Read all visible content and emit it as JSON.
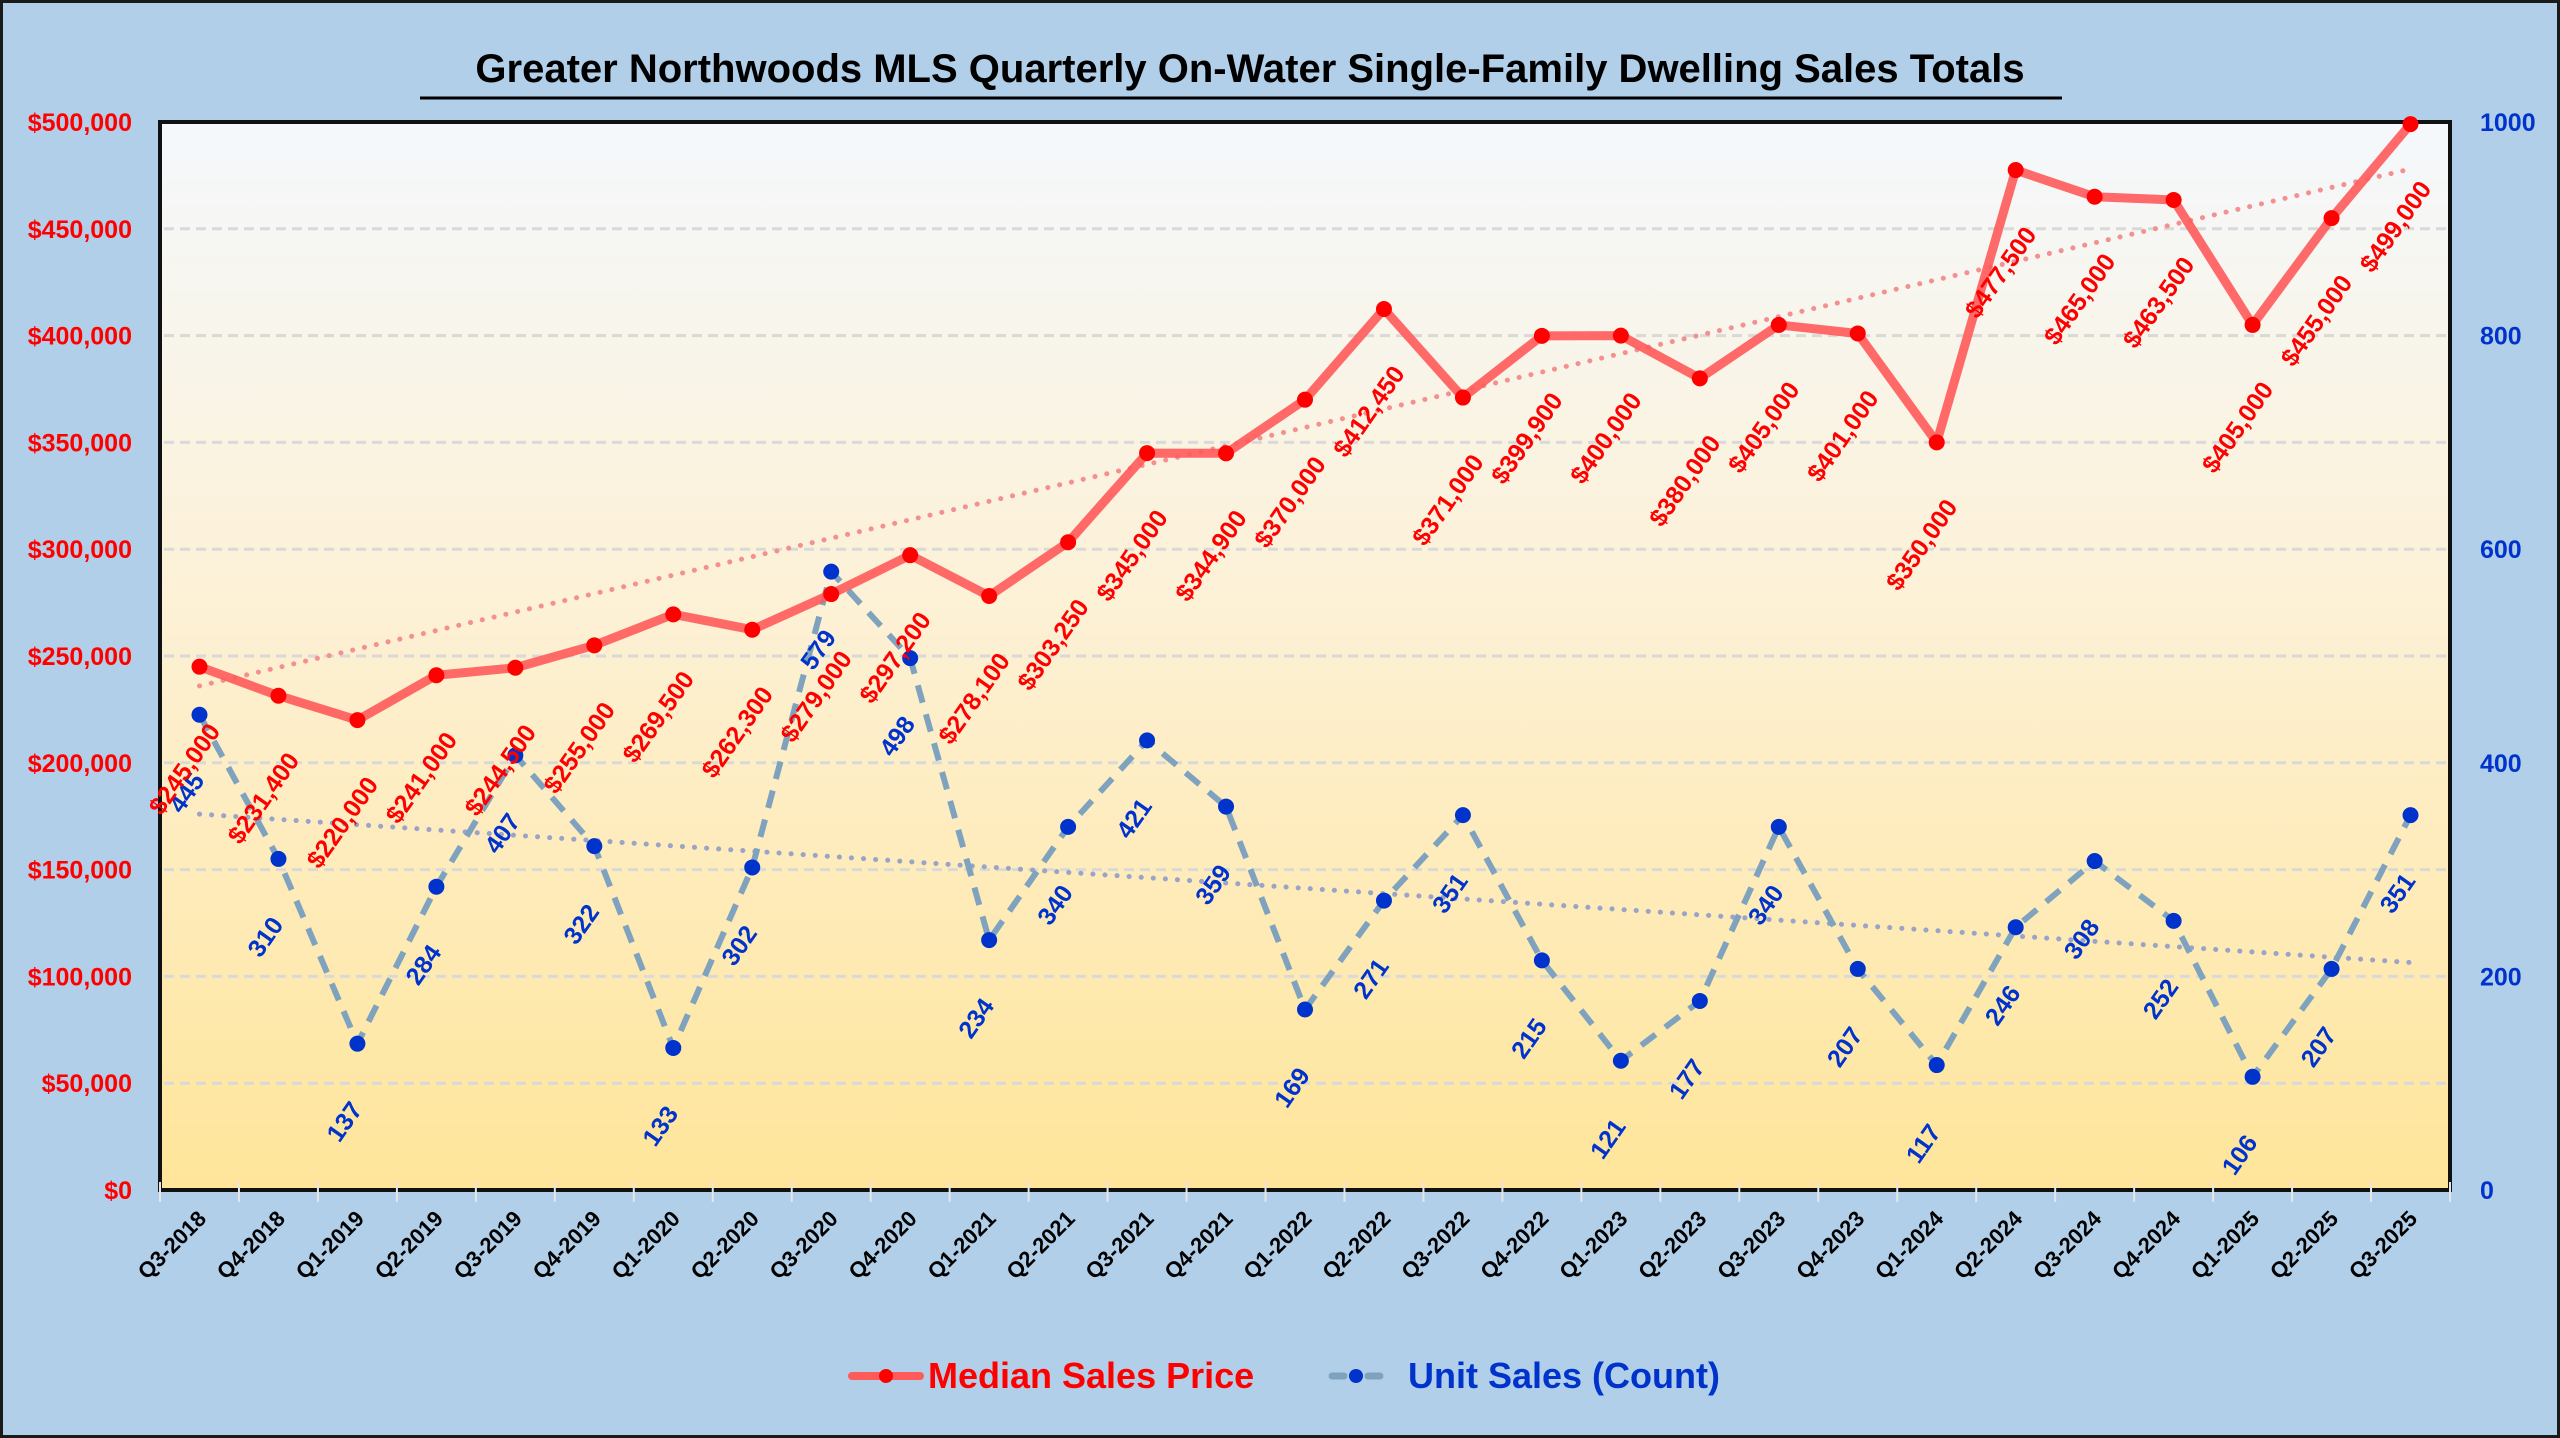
{
  "chart_data": {
    "type": "line",
    "title": "Greater Northwoods MLS Quarterly On-Water Single-Family Dwelling Sales Totals",
    "xlabel": "",
    "ylabel_left": "",
    "ylabel_right": "",
    "categories": [
      "Q3-2018",
      "Q4-2018",
      "Q1-2019",
      "Q2-2019",
      "Q3-2019",
      "Q4-2019",
      "Q1-2020",
      "Q2-2020",
      "Q3-2020",
      "Q4-2020",
      "Q1-2021",
      "Q2-2021",
      "Q3-2021",
      "Q4-2021",
      "Q1-2022",
      "Q2-2022",
      "Q3-2022",
      "Q4-2022",
      "Q1-2023",
      "Q2-2023",
      "Q3-2023",
      "Q4-2023",
      "Q1-2024",
      "Q2-2024",
      "Q3-2024",
      "Q4-2024",
      "Q1-2025",
      "Q2-2025",
      "Q3-2025"
    ],
    "series": [
      {
        "name": "Median Sales Price",
        "axis": "left",
        "color": "#ff5a5a",
        "marker_color": "#ff0000",
        "label_color": "#ff0000",
        "line_style": "solid",
        "values": [
          245000,
          231400,
          220000,
          241000,
          244500,
          255000,
          269500,
          262300,
          279000,
          297200,
          278100,
          303250,
          345000,
          344900,
          370000,
          412450,
          371000,
          399900,
          400000,
          380000,
          405000,
          401000,
          350000,
          477500,
          465000,
          463500,
          405000,
          455000,
          499000
        ],
        "labels": [
          "$245,000",
          "$231,400",
          "$220,000",
          "$241,000",
          "$244,500",
          "$255,000",
          "$269,500",
          "$262,300",
          "$279,000",
          "$297,200",
          "$278,100",
          "$303,250",
          "$345,000",
          "$344,900",
          "$370,000",
          "$412,450",
          "$371,000",
          "$399,900",
          "$400,000",
          "$380,000",
          "$405,000",
          "$401,000",
          "$350,000",
          "$477,500",
          "$465,000",
          "$463,500",
          "$405,000",
          "$455,000",
          "$499,000"
        ],
        "trendline": {
          "style": "dotted",
          "color": "#f49090",
          "start": 236000,
          "end": 478000
        }
      },
      {
        "name": "Unit Sales (Count)",
        "axis": "right",
        "color": "#7fa3bf",
        "marker_color": "#0033cc",
        "label_color": "#0033cc",
        "line_style": "dashed",
        "values": [
          445,
          310,
          137,
          284,
          407,
          322,
          133,
          302,
          579,
          498,
          234,
          340,
          421,
          359,
          169,
          271,
          351,
          215,
          121,
          177,
          340,
          207,
          117,
          246,
          308,
          252,
          106,
          207,
          351
        ],
        "labels": [
          "445",
          "310",
          "137",
          "284",
          "407",
          "322",
          "133",
          "302",
          "579",
          "498",
          "234",
          "340",
          "421",
          "359",
          "169",
          "271",
          "351",
          "215",
          "121",
          "177",
          "340",
          "207",
          "117",
          "246",
          "308",
          "252",
          "106",
          "207",
          "351"
        ],
        "trendline": {
          "style": "dotted",
          "color": "#9aa3c8",
          "start": 352,
          "end": 213
        }
      }
    ],
    "y_left": {
      "range": [
        0,
        500000
      ],
      "ticks": [
        0,
        50000,
        100000,
        150000,
        200000,
        250000,
        300000,
        350000,
        400000,
        450000,
        500000
      ],
      "tick_labels": [
        "$0",
        "$50,000",
        "$100,000",
        "$150,000",
        "$200,000",
        "$250,000",
        "$300,000",
        "$350,000",
        "$400,000",
        "$450,000",
        "$500,000"
      ],
      "color": "#ff0000"
    },
    "y_right": {
      "range": [
        0,
        1000
      ],
      "ticks": [
        0,
        200,
        400,
        600,
        800,
        1000
      ],
      "tick_labels": [
        "0",
        "200",
        "400",
        "600",
        "800",
        "1000"
      ],
      "color": "#0033cc"
    },
    "grid": true,
    "legend": {
      "placement": "bottom-center",
      "entries": [
        {
          "label": "Median Sales Price",
          "color": "#ff0000"
        },
        {
          "label": "Unit Sales (Count)",
          "color": "#0033cc"
        }
      ]
    },
    "colors": {
      "background": "#b2cfe9",
      "plot_top": "#f4f8fc",
      "plot_bottom": "#ffe59a"
    }
  }
}
